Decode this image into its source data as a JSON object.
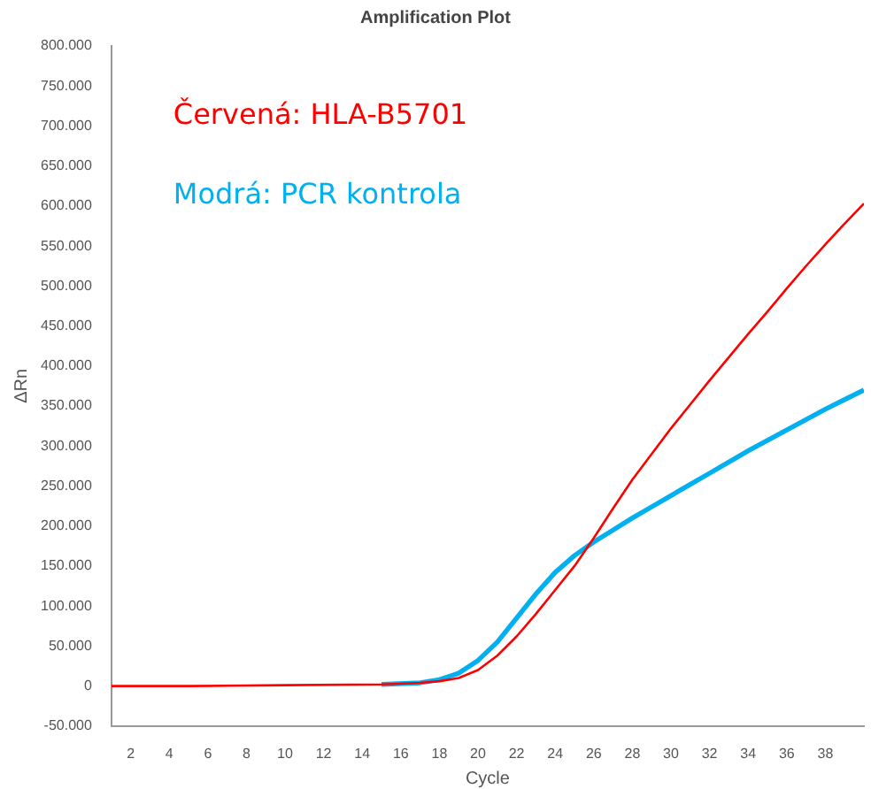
{
  "chart_data": {
    "type": "line",
    "title": "Amplification Plot",
    "xlabel": "Cycle",
    "ylabel": "ΔRn",
    "legend": "top left",
    "marker": "none",
    "line_style": "solid",
    "grid": false,
    "xlim": [
      1,
      40
    ],
    "xticks": [
      2,
      4,
      6,
      8,
      10,
      12,
      14,
      16,
      18,
      20,
      22,
      24,
      26,
      28,
      30,
      32,
      34,
      36,
      38
    ],
    "ylim": [
      -50000,
      800000
    ],
    "yticks": [
      {
        "value": -50000,
        "label": "-50.000"
      },
      0,
      {
        "value": 50000,
        "label": "50.000"
      },
      {
        "value": 100000,
        "label": "100.000"
      },
      {
        "value": 150000,
        "label": "150.000"
      },
      {
        "value": 200000,
        "label": "200.000"
      },
      {
        "value": 250000,
        "label": "250.000"
      },
      {
        "value": 300000,
        "label": "300.000"
      },
      {
        "value": 350000,
        "label": "350.000"
      },
      {
        "value": 400000,
        "label": "400.000"
      },
      {
        "value": 450000,
        "label": "450.000"
      },
      {
        "value": 500000,
        "label": "500.000"
      },
      {
        "value": 550000,
        "label": "550.000"
      },
      {
        "value": 600000,
        "label": "600.000"
      },
      {
        "value": 650000,
        "label": "650.000"
      },
      {
        "value": 700000,
        "label": "700.000"
      },
      {
        "value": 750000,
        "label": "750.000"
      },
      {
        "value": 800000,
        "label": "800.000"
      }
    ],
    "x": [
      1,
      5,
      10,
      15,
      17,
      18,
      19,
      20,
      21,
      22,
      23,
      24,
      25,
      26,
      27,
      28,
      29,
      30,
      31,
      32,
      33,
      34,
      35,
      36,
      37,
      38,
      39,
      40
    ],
    "series": [
      {
        "name": "Červená: HLA-B5701",
        "color": "#ff0000",
        "values": [
          0,
          0,
          1000,
          2000,
          4000,
          6000,
          10000,
          20000,
          38000,
          62000,
          90000,
          120000,
          150000,
          185000,
          222000,
          258000,
          290000,
          322000,
          352000,
          382000,
          411000,
          440000,
          468000,
          497000,
          525000,
          552000,
          578000,
          603000
        ]
      },
      {
        "name": "Modrá: PCR kontrola",
        "color": "#00b0f0",
        "values": [
          null,
          null,
          null,
          2000,
          4000,
          8000,
          16000,
          32000,
          55000,
          85000,
          115000,
          142000,
          163000,
          180000,
          195000,
          210000,
          224000,
          238000,
          252000,
          266000,
          280000,
          294000,
          307000,
          320000,
          333000,
          346000,
          358000,
          370000
        ]
      }
    ]
  }
}
